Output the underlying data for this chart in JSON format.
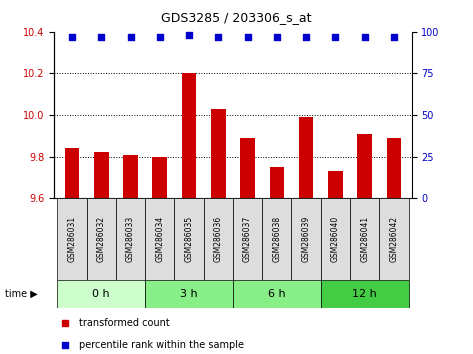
{
  "title": "GDS3285 / 203306_s_at",
  "samples": [
    "GSM286031",
    "GSM286032",
    "GSM286033",
    "GSM286034",
    "GSM286035",
    "GSM286036",
    "GSM286037",
    "GSM286038",
    "GSM286039",
    "GSM286040",
    "GSM286041",
    "GSM286042"
  ],
  "bar_values": [
    9.84,
    9.82,
    9.81,
    9.8,
    10.2,
    10.03,
    9.89,
    9.75,
    9.99,
    9.73,
    9.91,
    9.89
  ],
  "percentile_values": [
    97,
    97,
    97,
    97,
    98,
    97,
    97,
    97,
    97,
    97,
    97,
    97
  ],
  "bar_color": "#cc0000",
  "percentile_color": "#0000cc",
  "ylim_left": [
    9.6,
    10.4
  ],
  "ylim_right": [
    0,
    100
  ],
  "yticks_left": [
    9.6,
    9.8,
    10.0,
    10.2,
    10.4
  ],
  "yticks_right": [
    0,
    25,
    50,
    75,
    100
  ],
  "group_labels": [
    "0 h",
    "3 h",
    "6 h",
    "12 h"
  ],
  "group_ranges": [
    [
      0,
      3
    ],
    [
      3,
      6
    ],
    [
      6,
      9
    ],
    [
      9,
      12
    ]
  ],
  "group_colors": [
    "#ccffcc",
    "#88ee88",
    "#88ee88",
    "#44cc44"
  ],
  "legend_bar_label": "transformed count",
  "legend_pct_label": "percentile rank within the sample",
  "grid_color": "#000000",
  "sample_box_color": "#dddddd",
  "bar_width": 0.5
}
